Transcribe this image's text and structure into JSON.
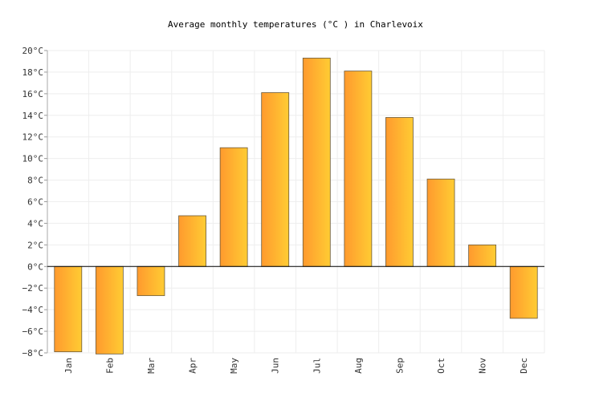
{
  "chart_data": {
    "type": "bar",
    "title": "Average monthly temperatures (°C ) in Charlevoix",
    "xlabel": "",
    "ylabel": "",
    "categories": [
      "Jan",
      "Feb",
      "Mar",
      "Apr",
      "May",
      "Jun",
      "Jul",
      "Aug",
      "Sep",
      "Oct",
      "Nov",
      "Dec"
    ],
    "values": [
      -7.9,
      -8.1,
      -2.7,
      4.7,
      11.0,
      16.1,
      19.3,
      18.1,
      13.8,
      8.1,
      2.0,
      -4.8
    ],
    "ylim": [
      -8,
      20
    ],
    "yticks": [
      -8,
      -6,
      -4,
      -2,
      0,
      2,
      4,
      6,
      8,
      10,
      12,
      14,
      16,
      18,
      20
    ],
    "ytick_labels": [
      "−8°C",
      "−6°C",
      "−4°C",
      "−2°C",
      "0°C",
      "2°C",
      "4°C",
      "6°C",
      "8°C",
      "10°C",
      "12°C",
      "14°C",
      "16°C",
      "18°C",
      "20°C"
    ],
    "grid": true,
    "legend": "none",
    "colors": {
      "bar_fill_start": "#ff9a2e",
      "bar_fill_end": "#ffcc33",
      "bar_stroke": "#6b5a3a",
      "grid": "#eeeeee",
      "axis": "#000000"
    }
  }
}
